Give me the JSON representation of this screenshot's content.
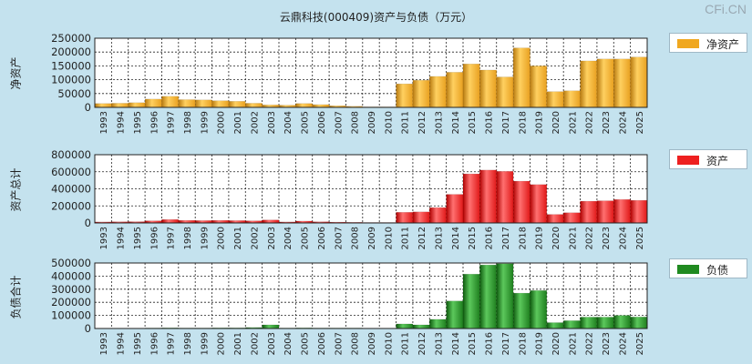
{
  "title": "云鼎科技(000409)资产与负债（万元）",
  "watermark": "CFi.CN",
  "colors": {
    "background": "#c4e2ee",
    "plot_bg": "#ffffff",
    "gold": "#f0a820",
    "red": "#ee2020",
    "green": "#208a20"
  },
  "chart_data": [
    {
      "type": "bar",
      "name": "net-assets",
      "ylabel": "净资产",
      "legend": "净资产",
      "color": "#f0a820",
      "ylim": [
        0,
        250000
      ],
      "yticks": [
        "250000",
        "200000",
        "150000",
        "100000",
        "50000",
        "0"
      ],
      "tick_values": [
        250000,
        200000,
        150000,
        100000,
        50000,
        0
      ],
      "categories": [
        "1993",
        "1994",
        "1995",
        "1996",
        "1997",
        "1998",
        "1999",
        "2000",
        "2001",
        "2002",
        "2003",
        "2004",
        "2005",
        "2006",
        "2007",
        "2008",
        "2009",
        "2010",
        "2011",
        "2012",
        "2013",
        "2014",
        "2015",
        "2016",
        "2017",
        "2018",
        "2019",
        "2020",
        "2021",
        "2022",
        "2023",
        "2024",
        "2025"
      ],
      "values": [
        14000,
        15000,
        17000,
        30000,
        40000,
        28000,
        27000,
        24000,
        22000,
        15000,
        9000,
        8000,
        14000,
        10000,
        6000,
        4000,
        2000,
        2000,
        85000,
        98000,
        112000,
        127000,
        157000,
        135000,
        110000,
        215000,
        150000,
        57000,
        60000,
        168000,
        175000,
        175000,
        182000
      ]
    },
    {
      "type": "bar",
      "name": "total-assets",
      "ylabel": "资产总计",
      "legend": "资产",
      "color": "#ee2020",
      "ylim": [
        0,
        800000
      ],
      "yticks": [
        "800000",
        "600000",
        "400000",
        "200000",
        "0"
      ],
      "tick_values": [
        800000,
        600000,
        400000,
        200000,
        0
      ],
      "categories": [
        "1993",
        "1994",
        "1995",
        "1996",
        "1997",
        "1998",
        "1999",
        "2000",
        "2001",
        "2002",
        "2003",
        "2004",
        "2005",
        "2006",
        "2007",
        "2008",
        "2009",
        "2010",
        "2011",
        "2012",
        "2013",
        "2014",
        "2015",
        "2016",
        "2017",
        "2018",
        "2019",
        "2020",
        "2021",
        "2022",
        "2023",
        "2024",
        "2025"
      ],
      "values": [
        12000,
        14000,
        15000,
        25000,
        40000,
        30000,
        28000,
        30000,
        28000,
        25000,
        35000,
        12000,
        22000,
        14000,
        10000,
        8000,
        6000,
        6000,
        125000,
        130000,
        180000,
        335000,
        575000,
        620000,
        605000,
        490000,
        450000,
        100000,
        120000,
        255000,
        260000,
        275000,
        265000
      ]
    },
    {
      "type": "bar",
      "name": "total-liabilities",
      "ylabel": "负债合计",
      "legend": "负债",
      "color": "#208a20",
      "ylim": [
        0,
        500000
      ],
      "yticks": [
        "500000",
        "400000",
        "300000",
        "200000",
        "100000",
        "0"
      ],
      "tick_values": [
        500000,
        400000,
        300000,
        200000,
        100000,
        0
      ],
      "categories": [
        "1993",
        "1994",
        "1995",
        "1996",
        "1997",
        "1998",
        "1999",
        "2000",
        "2001",
        "2002",
        "2003",
        "2004",
        "2005",
        "2006",
        "2007",
        "2008",
        "2009",
        "2010",
        "2011",
        "2012",
        "2013",
        "2014",
        "2015",
        "2016",
        "2017",
        "2018",
        "2019",
        "2020",
        "2021",
        "2022",
        "2023",
        "2024",
        "2025"
      ],
      "values": [
        3000,
        3000,
        3000,
        4000,
        5000,
        4000,
        4000,
        5000,
        5000,
        8000,
        28000,
        4000,
        5000,
        4000,
        4000,
        4000,
        3000,
        3000,
        35000,
        28000,
        70000,
        210000,
        415000,
        485000,
        495000,
        270000,
        290000,
        45000,
        60000,
        87000,
        87000,
        100000,
        88000
      ]
    }
  ]
}
